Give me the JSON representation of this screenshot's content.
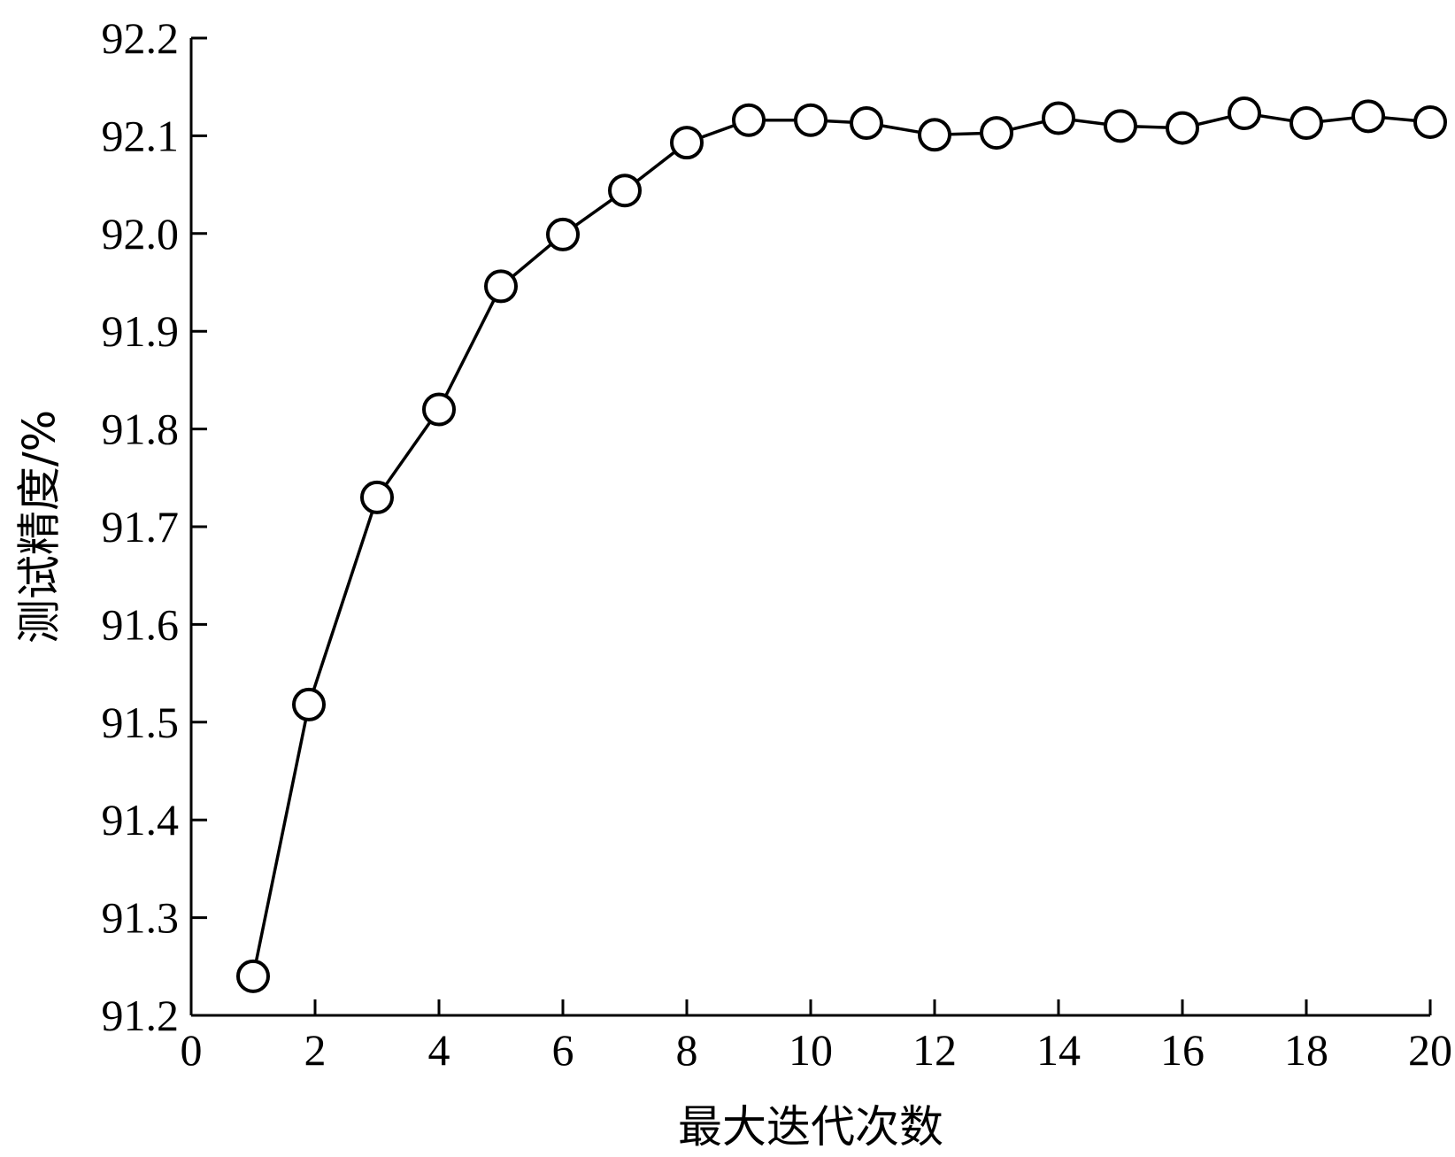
{
  "chart_data": {
    "type": "line",
    "xlabel": "最大迭代次数",
    "ylabel": "测试精度/%",
    "xlim": [
      0,
      20
    ],
    "ylim": [
      91.2,
      92.2
    ],
    "xticks": [
      0,
      2,
      4,
      6,
      8,
      10,
      12,
      14,
      16,
      18,
      20
    ],
    "yticks": [
      91.2,
      91.3,
      91.4,
      91.5,
      91.6,
      91.7,
      91.8,
      91.9,
      92.0,
      92.1,
      92.2
    ],
    "ytick_labels": [
      "91.2",
      "91.3",
      "91.4",
      "91.5",
      "91.6",
      "91.7",
      "91.8",
      "91.9",
      "92.0",
      "92.1",
      "92.2"
    ],
    "grid": false,
    "series": [
      {
        "marker": "open-circle",
        "color": "#000000",
        "x": [
          1,
          1.9,
          3,
          4,
          5,
          6,
          7,
          8,
          9,
          10,
          10.9,
          12,
          13,
          14,
          15,
          16,
          17,
          18,
          19,
          20
        ],
        "y": [
          91.24,
          91.518,
          91.73,
          91.82,
          91.946,
          91.999,
          92.044,
          92.093,
          92.116,
          92.116,
          92.113,
          92.101,
          92.103,
          92.118,
          92.11,
          92.108,
          92.123,
          92.113,
          92.12,
          92.114
        ]
      }
    ]
  }
}
